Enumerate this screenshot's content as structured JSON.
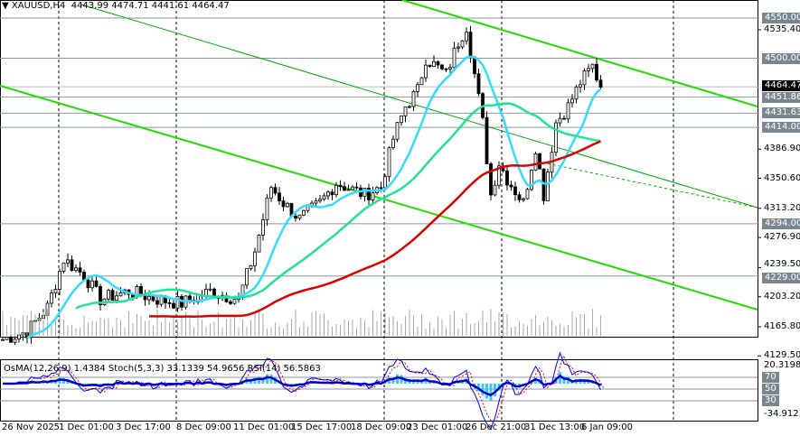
{
  "header": {
    "icon": "triangle-down-icon",
    "symbol": "XAUUSD,H4",
    "open": "4443.99",
    "high": "4474.71",
    "low": "4441.61",
    "close": "4464.47"
  },
  "indicator_header": "OsMA(12,26,9) 1.4384  Stoch(5,3,3) 33.1339 54.9656  RSI(14) 56.5863",
  "price_axis": [
    "4535.40",
    "4386.90",
    "4350.60",
    "4313.20",
    "4276.90",
    "4239.50",
    "4203.20",
    "4165.80",
    "4129.50"
  ],
  "levels": [
    {
      "price": 4550.0,
      "label": "4550.00"
    },
    {
      "price": 4500.0,
      "label": "4500.00"
    },
    {
      "price": 4451.86,
      "label": "4451.86"
    },
    {
      "price": 4431.63,
      "label": "4431.63"
    },
    {
      "price": 4414.0,
      "label": "4414.00"
    },
    {
      "price": 4294.0,
      "label": "4294.00"
    },
    {
      "price": 4229.0,
      "label": "4229.00"
    }
  ],
  "current_price": {
    "price": 4464.47,
    "label": "4464.47"
  },
  "indicator_axis": {
    "top": "20.3198",
    "bottom": "-34.9123",
    "levels": [
      "70",
      "50",
      "30"
    ]
  },
  "time_axis": [
    "26 Nov 2025",
    "1 Dec 01:00",
    "3 Dec 17:00",
    "8 Dec 09:00",
    "11 Dec 01:00",
    "15 Dec 17:00",
    "18 Dec 09:00",
    "23 Dec 01:00",
    "26 Dec 21:00",
    "31 Dec 13:00",
    "6 Jan 09:00"
  ],
  "colors": {
    "candle": "#000000",
    "ma_fast": "#33ddff",
    "ma_mid": "#22e39a",
    "ma_slow": "#e00000",
    "trend": "#22dd00",
    "osma": "#33ccff",
    "stoch": "#0000ff",
    "signal": "#ff0000",
    "rsi": "#0000cc"
  },
  "chart_data": {
    "type": "candlestick",
    "symbol": "XAUUSD",
    "timeframe": "H4",
    "ylim": [
      4129.5,
      4550
    ],
    "key_closes": [
      [
        0,
        4150
      ],
      [
        6,
        4160
      ],
      [
        11,
        4190
      ],
      [
        15,
        4250
      ],
      [
        20,
        4230
      ],
      [
        24,
        4200
      ],
      [
        31,
        4210
      ],
      [
        38,
        4200
      ],
      [
        44,
        4195
      ],
      [
        51,
        4210
      ],
      [
        58,
        4200
      ],
      [
        62,
        4260
      ],
      [
        66,
        4340
      ],
      [
        69,
        4320
      ],
      [
        73,
        4300
      ],
      [
        78,
        4320
      ],
      [
        82,
        4345
      ],
      [
        89,
        4330
      ],
      [
        93,
        4340
      ],
      [
        96,
        4400
      ],
      [
        99,
        4440
      ],
      [
        102,
        4460
      ],
      [
        104,
        4500
      ],
      [
        109,
        4480
      ],
      [
        112,
        4520
      ],
      [
        114,
        4540
      ],
      [
        116,
        4480
      ],
      [
        118,
        4420
      ],
      [
        120,
        4330
      ],
      [
        122,
        4370
      ],
      [
        124,
        4350
      ],
      [
        128,
        4320
      ],
      [
        131,
        4390
      ],
      [
        133,
        4330
      ],
      [
        136,
        4420
      ],
      [
        139,
        4440
      ],
      [
        142,
        4470
      ],
      [
        145,
        4490
      ],
      [
        147,
        4464
      ]
    ]
  }
}
